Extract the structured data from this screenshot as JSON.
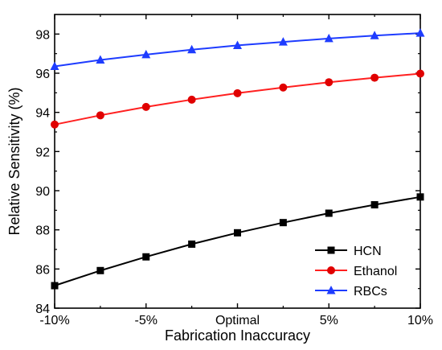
{
  "chart_data": {
    "type": "line",
    "title": "",
    "xlabel": "Fabrication Inaccuracy",
    "ylabel": "Relative Sensitivity (%)",
    "x": [
      -10,
      -7.5,
      -5,
      -2.5,
      0,
      2.5,
      5,
      7.5,
      10
    ],
    "x_tick_values": [
      -10,
      -5,
      0,
      5,
      10
    ],
    "x_tick_labels": [
      "-10%",
      "-5%",
      "Optimal",
      "5%",
      "10%"
    ],
    "xlim": [
      -10,
      10
    ],
    "ylim": [
      84,
      99
    ],
    "y_ticks": [
      84,
      86,
      88,
      90,
      92,
      94,
      96,
      98
    ],
    "grid": false,
    "legend_position": "bottom-right",
    "series": [
      {
        "name": "HCN",
        "marker": "square",
        "color": "#000000",
        "values": [
          85.15,
          85.92,
          86.62,
          87.27,
          87.85,
          88.37,
          88.85,
          89.28,
          89.68
        ]
      },
      {
        "name": "Ethanol",
        "marker": "circle",
        "color": "#ff2020",
        "marker_color": "#e00000",
        "values": [
          93.38,
          93.85,
          94.28,
          94.65,
          94.98,
          95.27,
          95.54,
          95.77,
          95.98
        ]
      },
      {
        "name": "RBCs",
        "marker": "triangle",
        "color": "#1e3cff",
        "values": [
          96.35,
          96.68,
          96.95,
          97.2,
          97.42,
          97.6,
          97.77,
          97.92,
          98.05
        ]
      }
    ]
  }
}
